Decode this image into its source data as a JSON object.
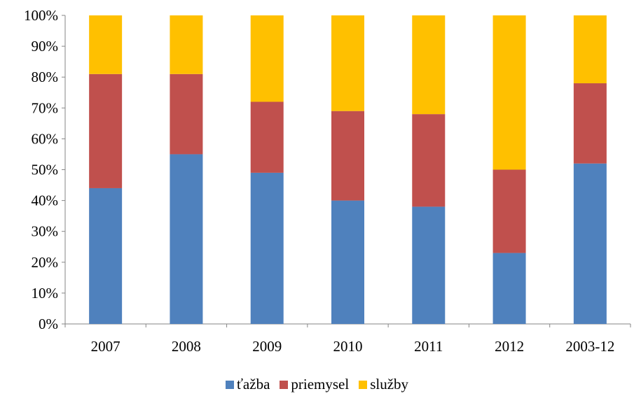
{
  "chart_data": {
    "type": "bar",
    "stacked": "percent",
    "categories": [
      "2007",
      "2008",
      "2009",
      "2010",
      "2011",
      "2012",
      "2003-12"
    ],
    "series": [
      {
        "name": "ťažba",
        "color": "#4F81BD",
        "values": [
          44,
          55,
          49,
          40,
          38,
          23,
          52
        ]
      },
      {
        "name": "priemysel",
        "color": "#C0504D",
        "values": [
          37,
          26,
          23,
          29,
          30,
          27,
          26
        ]
      },
      {
        "name": "služby",
        "color": "#FFC000",
        "values": [
          19,
          19,
          28,
          31,
          32,
          50,
          22
        ]
      }
    ],
    "ylim": [
      0,
      100
    ],
    "yticks": [
      "0%",
      "10%",
      "20%",
      "30%",
      "40%",
      "50%",
      "60%",
      "70%",
      "80%",
      "90%",
      "100%"
    ],
    "grid": false,
    "legend_position": "bottom"
  }
}
